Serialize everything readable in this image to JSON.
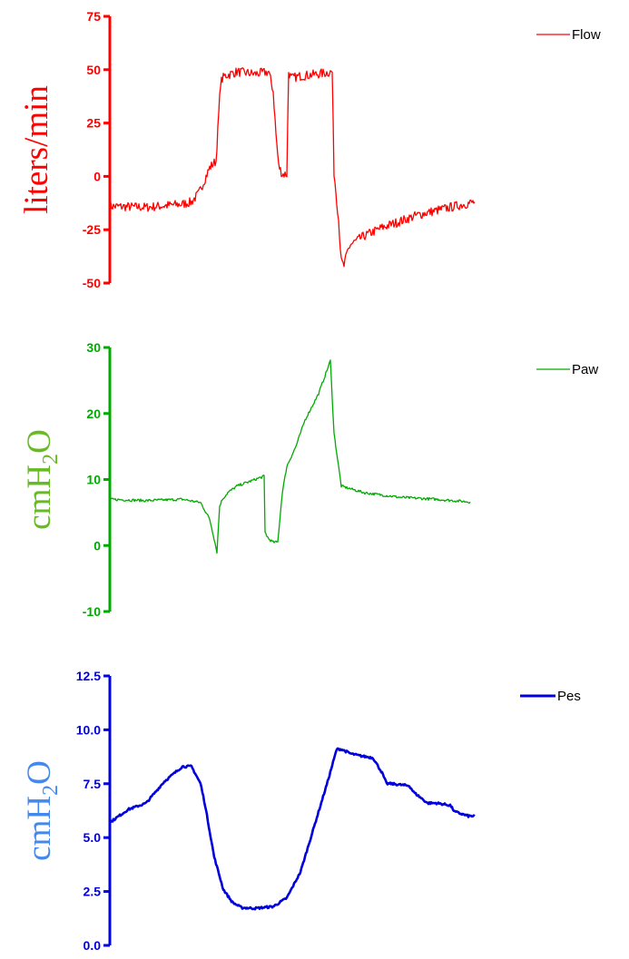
{
  "chart_data": [
    {
      "type": "line",
      "ylabel": "liters/min",
      "ylim": [
        -50,
        75
      ],
      "yticks": [
        75,
        50,
        25,
        0,
        -25,
        -50
      ],
      "ytick_labels": [
        "75",
        "50",
        "25",
        "0",
        "-25",
        "-50"
      ],
      "color": "#ff0000",
      "series": [
        {
          "name": "Flow",
          "x": [
            0,
            40,
            80,
            90,
            98,
            106,
            110,
            114,
            117,
            122,
            126,
            140,
            160,
            175,
            180,
            183,
            186,
            190,
            192,
            195,
            197,
            200,
            210,
            230,
            245,
            247,
            252,
            255,
            258,
            262,
            265,
            280,
            300,
            340,
            380,
            402
          ],
          "y": [
            -14,
            -14.5,
            -13,
            -12,
            -8,
            0,
            4,
            6,
            7,
            44,
            47,
            49,
            48,
            49,
            40,
            20,
            5,
            1,
            1,
            1,
            49,
            46,
            47,
            48,
            49,
            2,
            -20,
            -40,
            -42,
            -35,
            -32,
            -28,
            -24,
            -18,
            -14,
            -12
          ]
        }
      ],
      "noise": 2.2
    },
    {
      "type": "line",
      "ylabel": "cmH2O",
      "ylim": [
        -10,
        30
      ],
      "yticks": [
        30,
        20,
        10,
        0,
        -10
      ],
      "ytick_labels": [
        "30",
        "20",
        "10",
        "0",
        "-10"
      ],
      "color": "#00aa00",
      "label_color": "#66bb22",
      "series": [
        {
          "name": "Paw",
          "x": [
            0,
            40,
            80,
            100,
            110,
            115,
            118,
            121,
            124,
            130,
            140,
            160,
            170,
            171,
            175,
            180,
            185,
            190,
            195,
            205,
            215,
            230,
            243,
            247,
            255,
            280,
            320,
            360,
            397
          ],
          "y": [
            7,
            6.8,
            7,
            6.5,
            4,
            1,
            -1,
            6,
            7,
            8,
            9,
            10,
            10.5,
            2,
            1,
            0.5,
            0.5,
            8,
            12,
            15,
            19,
            23,
            28,
            17,
            9,
            8,
            7.3,
            7,
            6.6
          ]
        }
      ],
      "noise": 0.2
    },
    {
      "type": "line",
      "ylabel": "cmH2O",
      "ylim": [
        0,
        12.5
      ],
      "yticks": [
        12.5,
        10.0,
        7.5,
        5.0,
        2.5,
        0.0
      ],
      "ytick_labels": [
        "12.5",
        "10.0",
        "7.5",
        "5.0",
        "2.5",
        "0.0"
      ],
      "color": "#0000dd",
      "label_color": "#4488ee",
      "series": [
        {
          "name": "Pes",
          "x": [
            0,
            20,
            40,
            60,
            80,
            90,
            100,
            105,
            115,
            125,
            135,
            145,
            160,
            180,
            195,
            210,
            225,
            240,
            250,
            255,
            265,
            275,
            290,
            300,
            305,
            310,
            330,
            335,
            350,
            355,
            360,
            375,
            380,
            395,
            402
          ],
          "y": [
            5.7,
            6.3,
            6.6,
            7.6,
            8.3,
            8.3,
            7.5,
            6.5,
            4.1,
            2.6,
            2.0,
            1.75,
            1.72,
            1.8,
            2.2,
            3.4,
            5.5,
            7.6,
            9.1,
            9.1,
            8.9,
            8.8,
            8.7,
            8.0,
            7.5,
            7.5,
            7.4,
            7.1,
            6.6,
            6.6,
            6.6,
            6.5,
            6.2,
            6.0,
            6.0
          ]
        }
      ],
      "noise": 0.05
    }
  ]
}
